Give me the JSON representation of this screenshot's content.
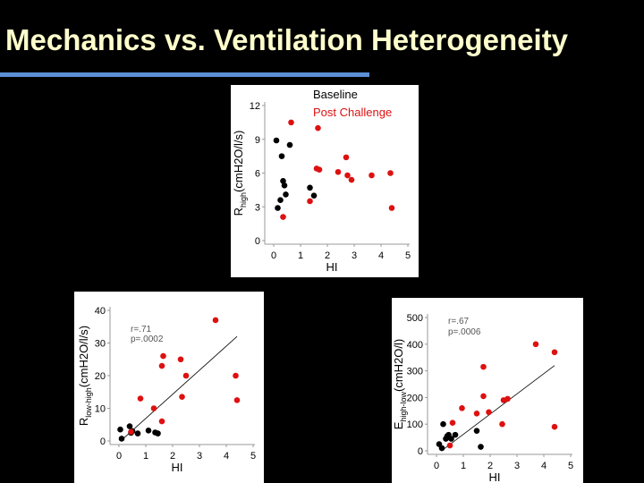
{
  "slide": {
    "title": "Mechanics vs. Ventilation Heterogeneity",
    "title_color": "#ffffcc",
    "rule_color": "#5b8fd6",
    "background": "#000000"
  },
  "colors": {
    "baseline": "#000000",
    "post": "#dd1111"
  },
  "chart_data": [
    {
      "type": "scatter",
      "title": "",
      "xlabel": "HI",
      "ylabel": {
        "main": "R",
        "sub": "high",
        "rest": "(cmH2O/l/s)"
      },
      "xlim": [
        0,
        5
      ],
      "ylim": [
        0,
        12
      ],
      "xticks": [
        "0",
        "1",
        "2",
        "3",
        "4",
        "5"
      ],
      "yticks": [
        "0",
        "3",
        "6",
        "9",
        "12"
      ],
      "grid": false,
      "legend": "top-right",
      "legend_items": [
        "Baseline",
        "Post Challenge"
      ],
      "annotations": [],
      "series": [
        {
          "name": "Baseline",
          "color": "#000000",
          "points": [
            [
              0.1,
              8.9
            ],
            [
              0.3,
              7.5
            ],
            [
              0.35,
              5.3
            ],
            [
              0.4,
              4.9
            ],
            [
              0.6,
              8.5
            ],
            [
              0.15,
              2.9
            ],
            [
              0.25,
              3.6
            ],
            [
              0.45,
              4.1
            ],
            [
              1.35,
              4.7
            ],
            [
              1.5,
              4.0
            ]
          ]
        },
        {
          "name": "Post Challenge",
          "color": "#dd1111",
          "points": [
            [
              0.35,
              2.1
            ],
            [
              0.65,
              10.5
            ],
            [
              1.35,
              3.5
            ],
            [
              1.65,
              10.0
            ],
            [
              1.6,
              6.4
            ],
            [
              1.7,
              6.3
            ],
            [
              2.4,
              6.1
            ],
            [
              2.7,
              7.4
            ],
            [
              2.75,
              5.8
            ],
            [
              2.9,
              5.4
            ],
            [
              3.65,
              5.8
            ],
            [
              4.35,
              6.0
            ],
            [
              4.4,
              2.9
            ]
          ]
        }
      ]
    },
    {
      "type": "scatter",
      "title": "",
      "xlabel": "HI",
      "ylabel": {
        "main": "R",
        "sub": "low-high",
        "rest": "(cmH2O/l/s)"
      },
      "xlim": [
        0,
        5
      ],
      "ylim": [
        0,
        40
      ],
      "xticks": [
        "0",
        "1",
        "2",
        "3",
        "4",
        "5"
      ],
      "yticks": [
        "0",
        "10",
        "20",
        "30",
        "40"
      ],
      "grid": false,
      "legend": "none",
      "annotations": [
        "r=.71",
        "p=.0002"
      ],
      "trendline": [
        [
          0.2,
          1.0
        ],
        [
          4.4,
          32.0
        ]
      ],
      "series": [
        {
          "name": "Baseline",
          "color": "#000000",
          "points": [
            [
              0.05,
              3.5
            ],
            [
              0.1,
              0.7
            ],
            [
              0.4,
              4.5
            ],
            [
              0.45,
              2.5
            ],
            [
              0.5,
              3.0
            ],
            [
              0.7,
              2.3
            ],
            [
              1.1,
              3.2
            ],
            [
              1.35,
              2.6
            ],
            [
              1.45,
              2.3
            ]
          ]
        },
        {
          "name": "Post Challenge",
          "color": "#dd1111",
          "points": [
            [
              0.45,
              2.8
            ],
            [
              0.8,
              13.0
            ],
            [
              1.3,
              10.0
            ],
            [
              1.6,
              6.0
            ],
            [
              1.6,
              23.0
            ],
            [
              1.65,
              26.0
            ],
            [
              2.3,
              25.0
            ],
            [
              2.35,
              13.5
            ],
            [
              2.5,
              20.0
            ],
            [
              3.6,
              37.0
            ],
            [
              4.35,
              20.0
            ],
            [
              4.4,
              12.5
            ]
          ]
        }
      ]
    },
    {
      "type": "scatter",
      "title": "",
      "xlabel": "HI",
      "ylabel": {
        "main": "E",
        "sub": "high-low",
        "rest": "(cmH2O/l)"
      },
      "xlim": [
        0,
        5
      ],
      "ylim": [
        0,
        500
      ],
      "xticks": [
        "0",
        "1",
        "2",
        "3",
        "4",
        "5"
      ],
      "yticks": [
        "0",
        "100",
        "200",
        "300",
        "400",
        "500"
      ],
      "grid": false,
      "legend": "none",
      "annotations": [
        "r=.67",
        "p=.0006"
      ],
      "trendline": [
        [
          0.25,
          5.0
        ],
        [
          4.4,
          320.0
        ]
      ],
      "series": [
        {
          "name": "Baseline",
          "color": "#000000",
          "points": [
            [
              0.1,
              25.0
            ],
            [
              0.2,
              10.0
            ],
            [
              0.25,
              100.0
            ],
            [
              0.35,
              45.0
            ],
            [
              0.4,
              55.0
            ],
            [
              0.45,
              60.0
            ],
            [
              0.55,
              45.0
            ],
            [
              0.7,
              60.0
            ],
            [
              1.5,
              75.0
            ],
            [
              1.65,
              15.0
            ]
          ]
        },
        {
          "name": "Post Challenge",
          "color": "#dd1111",
          "points": [
            [
              0.5,
              20.0
            ],
            [
              0.6,
              105.0
            ],
            [
              0.95,
              160.0
            ],
            [
              1.5,
              140.0
            ],
            [
              1.75,
              315.0
            ],
            [
              1.75,
              205.0
            ],
            [
              1.95,
              145.0
            ],
            [
              2.45,
              100.0
            ],
            [
              2.5,
              190.0
            ],
            [
              2.65,
              195.0
            ],
            [
              3.7,
              400.0
            ],
            [
              4.4,
              370.0
            ],
            [
              4.4,
              90.0
            ]
          ]
        }
      ]
    }
  ]
}
